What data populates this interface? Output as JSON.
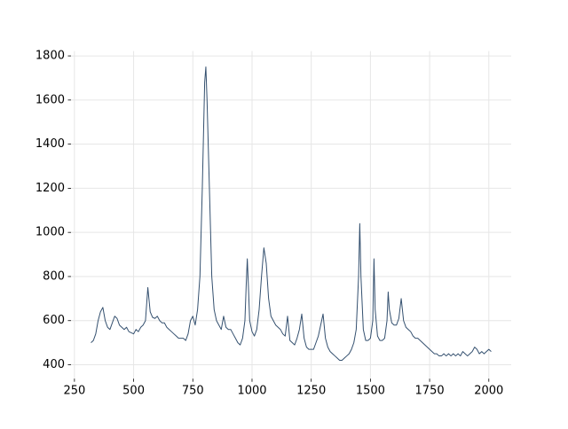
{
  "chart_data": {
    "type": "line",
    "x": [
      320,
      330,
      340,
      350,
      360,
      370,
      380,
      390,
      400,
      410,
      420,
      430,
      440,
      450,
      460,
      470,
      480,
      490,
      500,
      510,
      520,
      530,
      540,
      550,
      560,
      570,
      580,
      590,
      600,
      610,
      620,
      630,
      640,
      650,
      660,
      670,
      680,
      690,
      700,
      710,
      720,
      730,
      740,
      750,
      760,
      770,
      780,
      790,
      800,
      805,
      810,
      820,
      830,
      840,
      850,
      860,
      870,
      880,
      890,
      900,
      910,
      920,
      930,
      940,
      950,
      960,
      970,
      975,
      980,
      985,
      990,
      1000,
      1010,
      1020,
      1030,
      1040,
      1050,
      1060,
      1070,
      1080,
      1090,
      1100,
      1110,
      1120,
      1130,
      1140,
      1150,
      1160,
      1170,
      1180,
      1190,
      1200,
      1210,
      1220,
      1230,
      1240,
      1250,
      1260,
      1270,
      1280,
      1290,
      1300,
      1310,
      1320,
      1330,
      1340,
      1350,
      1360,
      1370,
      1380,
      1390,
      1400,
      1410,
      1420,
      1430,
      1440,
      1450,
      1455,
      1460,
      1470,
      1480,
      1490,
      1500,
      1510,
      1515,
      1520,
      1530,
      1540,
      1550,
      1560,
      1570,
      1575,
      1580,
      1590,
      1600,
      1610,
      1620,
      1630,
      1640,
      1650,
      1660,
      1670,
      1680,
      1690,
      1700,
      1710,
      1720,
      1730,
      1740,
      1750,
      1760,
      1770,
      1780,
      1790,
      1800,
      1810,
      1820,
      1830,
      1840,
      1850,
      1860,
      1870,
      1880,
      1890,
      1900,
      1910,
      1920,
      1930,
      1940,
      1950,
      1960,
      1970,
      1980,
      1990,
      2000,
      2010
    ],
    "series": [
      {
        "color": "#34506f",
        "values": [
          500,
          510,
          540,
          600,
          640,
          660,
          600,
          570,
          560,
          590,
          620,
          610,
          580,
          570,
          560,
          570,
          550,
          545,
          540,
          560,
          550,
          570,
          580,
          600,
          750,
          640,
          615,
          610,
          620,
          600,
          590,
          590,
          570,
          560,
          550,
          540,
          530,
          520,
          520,
          520,
          510,
          540,
          600,
          620,
          580,
          650,
          800,
          1200,
          1680,
          1750,
          1600,
          1200,
          800,
          650,
          600,
          580,
          560,
          620,
          570,
          560,
          560,
          540,
          520,
          500,
          490,
          520,
          600,
          750,
          880,
          750,
          600,
          550,
          530,
          560,
          650,
          800,
          930,
          860,
          700,
          620,
          600,
          580,
          570,
          560,
          540,
          530,
          620,
          510,
          500,
          490,
          520,
          560,
          630,
          520,
          480,
          470,
          470,
          470,
          500,
          530,
          580,
          630,
          520,
          480,
          460,
          450,
          440,
          430,
          420,
          420,
          430,
          440,
          450,
          470,
          500,
          560,
          800,
          1040,
          800,
          560,
          510,
          510,
          520,
          600,
          880,
          650,
          530,
          510,
          510,
          520,
          600,
          730,
          650,
          590,
          580,
          580,
          610,
          700,
          600,
          570,
          560,
          550,
          530,
          520,
          520,
          510,
          500,
          490,
          480,
          470,
          460,
          450,
          450,
          440,
          440,
          450,
          440,
          450,
          440,
          450,
          440,
          450,
          440,
          460,
          450,
          440,
          450,
          460,
          480,
          470,
          450,
          460,
          450,
          460,
          470,
          460
        ]
      }
    ],
    "xlim": [
      235.5,
      2094.5
    ],
    "ylim": [
      337,
      1822
    ],
    "xticks": [
      250,
      500,
      750,
      1000,
      1250,
      1500,
      1750,
      2000
    ],
    "yticks": [
      400,
      600,
      800,
      1000,
      1200,
      1400,
      1600,
      1800
    ],
    "grid": true
  }
}
